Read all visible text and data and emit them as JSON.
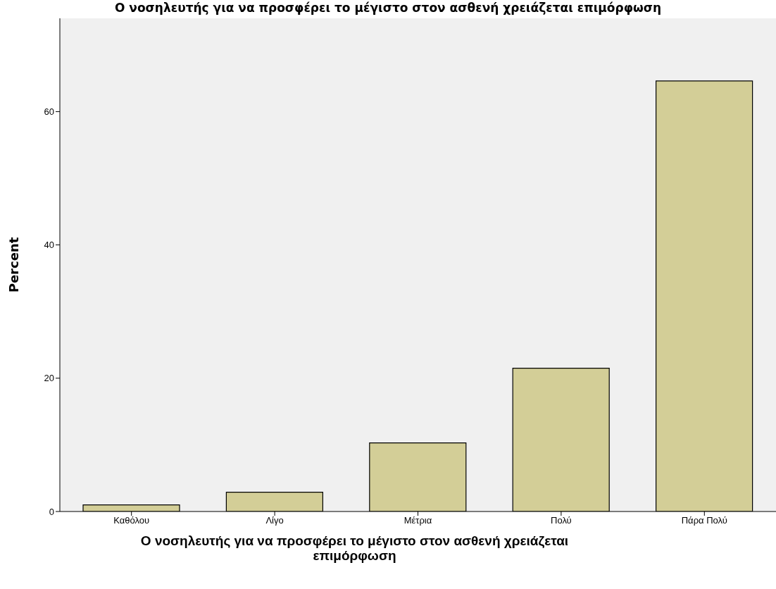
{
  "chart_data": {
    "type": "bar",
    "title": "Ο νοσηλευτής για να προσφέρει το μέγιστο στον ασθενή χρειάζεται επιμόρφωση",
    "xlabel": "Ο νοσηλευτής για να προσφέρει το μέγιστο στον ασθενή χρειάζεται επιμόρφωση",
    "ylabel": "Percent",
    "categories": [
      "Καθόλου",
      "Λίγο",
      "Μέτρια",
      "Πολύ",
      "Πάρα Πολύ"
    ],
    "values": [
      1.0,
      2.9,
      10.3,
      21.5,
      64.6
    ],
    "color": "#d3ce97",
    "ylim": [
      0,
      74
    ],
    "yticks": [
      0,
      20,
      40,
      60
    ],
    "grid": false
  }
}
